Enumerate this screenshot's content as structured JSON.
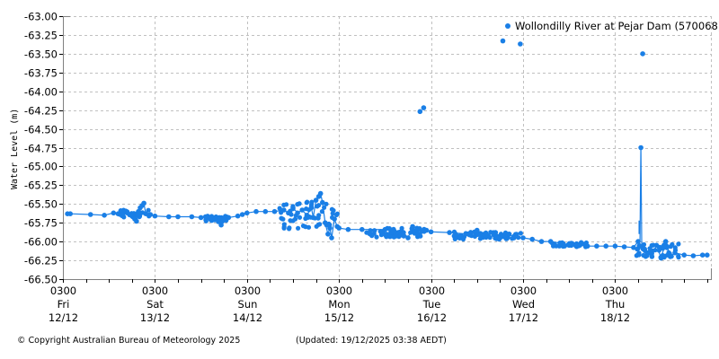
{
  "chart_data": {
    "type": "scatter",
    "title": "",
    "xlabel": "",
    "ylabel": "Water Level (m)",
    "ylim": [
      -66.5,
      -63.0
    ],
    "yticks": [
      "-63.00",
      "-63.25",
      "-63.50",
      "-63.75",
      "-64.00",
      "-64.25",
      "-64.50",
      "-64.75",
      "-65.00",
      "-65.25",
      "-65.50",
      "-65.75",
      "-66.00",
      "-66.25",
      "-66.50"
    ],
    "xticks": [
      {
        "time": "0300",
        "day": "Fri",
        "date": "12/12"
      },
      {
        "time": "0300",
        "day": "Sat",
        "date": "13/12"
      },
      {
        "time": "0300",
        "day": "Sun",
        "date": "14/12"
      },
      {
        "time": "0300",
        "day": "Mon",
        "date": "15/12"
      },
      {
        "time": "0300",
        "day": "Tue",
        "date": "16/12"
      },
      {
        "time": "0300",
        "day": "Wed",
        "date": "17/12"
      },
      {
        "time": "0300",
        "day": "Thu",
        "date": "18/12"
      }
    ],
    "grid": true,
    "legend_position": "top-right",
    "series": [
      {
        "name": "Wollondilly River at Pejar Dam (570068)",
        "color": "#1a7fe6",
        "x_units": "days since Fri 12/12 0300",
        "points": [
          [
            0.05,
            -65.63
          ],
          [
            0.08,
            -65.63
          ],
          [
            0.3,
            -65.64
          ],
          [
            0.45,
            -65.65
          ],
          [
            0.55,
            -65.62
          ],
          [
            0.6,
            -65.63
          ],
          [
            0.65,
            -65.64
          ],
          [
            0.7,
            -65.62
          ],
          [
            0.75,
            -65.66
          ],
          [
            0.78,
            -65.7
          ],
          [
            0.8,
            -65.73
          ],
          [
            0.82,
            -65.6
          ],
          [
            0.84,
            -65.55
          ],
          [
            0.86,
            -65.52
          ],
          [
            0.88,
            -65.49
          ],
          [
            0.9,
            -65.63
          ],
          [
            0.95,
            -65.64
          ],
          [
            1.0,
            -65.66
          ],
          [
            1.15,
            -65.67
          ],
          [
            1.25,
            -65.67
          ],
          [
            1.4,
            -65.67
          ],
          [
            1.5,
            -65.68
          ],
          [
            1.55,
            -65.67
          ],
          [
            1.6,
            -65.69
          ],
          [
            1.65,
            -65.71
          ],
          [
            1.7,
            -65.68
          ],
          [
            1.72,
            -65.78
          ],
          [
            1.75,
            -65.7
          ],
          [
            1.8,
            -65.68
          ],
          [
            1.9,
            -65.66
          ],
          [
            1.95,
            -65.64
          ],
          [
            2.0,
            -65.62
          ],
          [
            2.1,
            -65.6
          ],
          [
            2.2,
            -65.6
          ],
          [
            2.3,
            -65.6
          ],
          [
            2.4,
            -65.58
          ],
          [
            2.45,
            -65.62
          ],
          [
            2.5,
            -65.55
          ],
          [
            2.55,
            -65.62
          ],
          [
            2.6,
            -65.58
          ],
          [
            2.65,
            -65.65
          ],
          [
            2.7,
            -65.55
          ],
          [
            2.72,
            -65.68
          ],
          [
            2.75,
            -65.45
          ],
          [
            2.78,
            -65.4
          ],
          [
            2.8,
            -65.36
          ],
          [
            2.82,
            -65.48
          ],
          [
            2.85,
            -65.75
          ],
          [
            2.88,
            -65.9
          ],
          [
            2.9,
            -65.82
          ],
          [
            2.92,
            -65.95
          ],
          [
            2.95,
            -65.7
          ],
          [
            2.98,
            -65.8
          ],
          [
            3.0,
            -65.82
          ],
          [
            3.1,
            -65.84
          ],
          [
            3.25,
            -65.84
          ],
          [
            3.5,
            -65.84
          ],
          [
            3.6,
            -65.86
          ],
          [
            3.7,
            -65.88
          ],
          [
            3.75,
            -65.95
          ],
          [
            3.8,
            -65.8
          ],
          [
            3.85,
            -65.9
          ],
          [
            3.88,
            -64.27
          ],
          [
            3.92,
            -64.22
          ],
          [
            3.95,
            -65.85
          ],
          [
            4.0,
            -65.87
          ],
          [
            4.2,
            -65.88
          ],
          [
            4.4,
            -65.9
          ],
          [
            4.5,
            -65.85
          ],
          [
            4.6,
            -65.92
          ],
          [
            4.7,
            -65.88
          ],
          [
            4.75,
            -65.95
          ],
          [
            4.78,
            -63.33
          ],
          [
            4.8,
            -65.92
          ],
          [
            4.85,
            -65.9
          ],
          [
            4.9,
            -65.95
          ],
          [
            4.97,
            -63.37
          ],
          [
            5.0,
            -65.95
          ],
          [
            5.1,
            -65.97
          ],
          [
            5.2,
            -66.0
          ],
          [
            5.3,
            -66.0
          ],
          [
            5.4,
            -66.02
          ],
          [
            5.5,
            -66.05
          ],
          [
            5.6,
            -66.05
          ],
          [
            5.7,
            -66.06
          ],
          [
            5.8,
            -66.06
          ],
          [
            5.9,
            -66.06
          ],
          [
            6.0,
            -66.06
          ],
          [
            6.1,
            -66.07
          ],
          [
            6.2,
            -66.08
          ],
          [
            6.25,
            -66.0
          ],
          [
            6.28,
            -64.75
          ],
          [
            6.3,
            -63.5
          ],
          [
            6.32,
            -66.1
          ],
          [
            6.35,
            -66.15
          ],
          [
            6.4,
            -66.2
          ],
          [
            6.45,
            -66.05
          ],
          [
            6.5,
            -66.22
          ],
          [
            6.55,
            -66.0
          ],
          [
            6.6,
            -66.2
          ],
          [
            6.65,
            -66.15
          ],
          [
            6.75,
            -66.18
          ],
          [
            6.85,
            -66.19
          ],
          [
            6.95,
            -66.18
          ],
          [
            7.0,
            -66.18
          ]
        ]
      }
    ]
  },
  "legend": {
    "label": "Wollondilly River at Pejar Dam (570068)",
    "marker_color": "#1a7fe6"
  },
  "axis": {
    "ylabel": "Water Level (m)"
  },
  "footer": {
    "copyright": "© Copyright Australian Bureau of Meteorology 2025",
    "updated": "(Updated: 19/12/2025 03:38 AEDT)"
  },
  "colors": {
    "series": "#1a7fe6",
    "grid": "#c0c0c0",
    "axis": "#808080"
  }
}
